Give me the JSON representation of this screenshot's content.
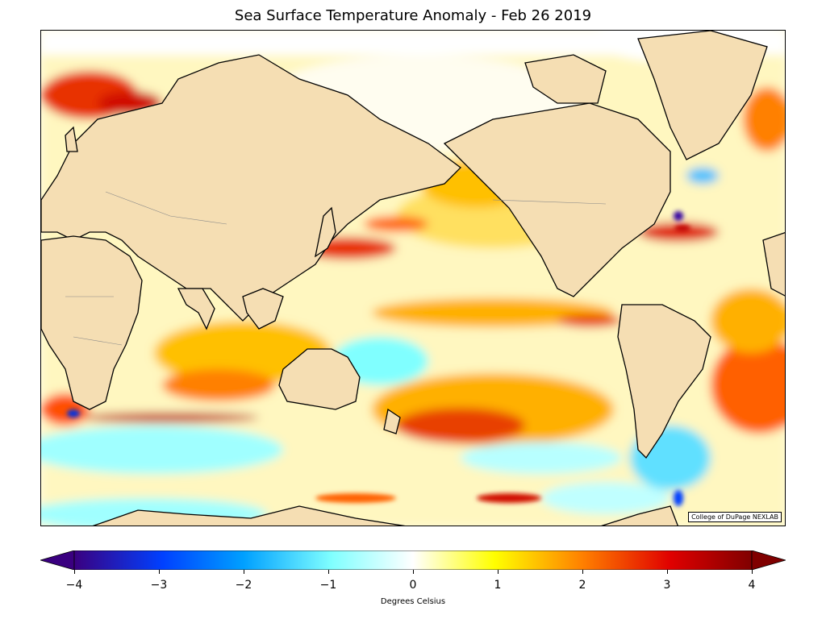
{
  "title": "Sea Surface Temperature Anomaly - Feb 26 2019",
  "credit": "College of DuPage NEXLAB",
  "colorbar": {
    "label": "Degrees Celsius",
    "min": -4,
    "max": 4,
    "ticks": [
      "−4",
      "−3",
      "−2",
      "−1",
      "0",
      "1",
      "2",
      "3",
      "4"
    ],
    "colors": [
      "#3a0080",
      "#0040ff",
      "#00b0ff",
      "#7fffff",
      "#ffffff",
      "#ffff00",
      "#ff8000",
      "#e00000",
      "#800000"
    ]
  },
  "map": {
    "land_color": "#f5deb3",
    "ocean_base_color": "#fffde8"
  }
}
